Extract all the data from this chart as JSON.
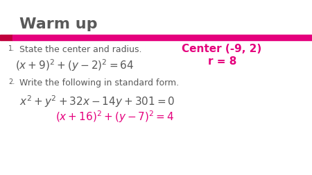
{
  "title": "Warm up",
  "title_color": "#595959",
  "title_fontsize": 16,
  "background_color": "#ffffff",
  "pink_color": "#e5007d",
  "dark_color": "#595959",
  "bar_color": "#e5007d",
  "bar_left_block_color": "#c0003c",
  "item1_label": "1.",
  "item1_text": "State the center and radius.",
  "item1_answer1": "Center (-9, 2)",
  "item1_answer2": "r = 8",
  "item2_label": "2.",
  "item2_text": "Write the following in standard form.",
  "label_fontsize": 7,
  "text_fontsize": 9,
  "answer_fontsize": 11,
  "eq_fontsize": 11,
  "eq2_fontsize": 10
}
